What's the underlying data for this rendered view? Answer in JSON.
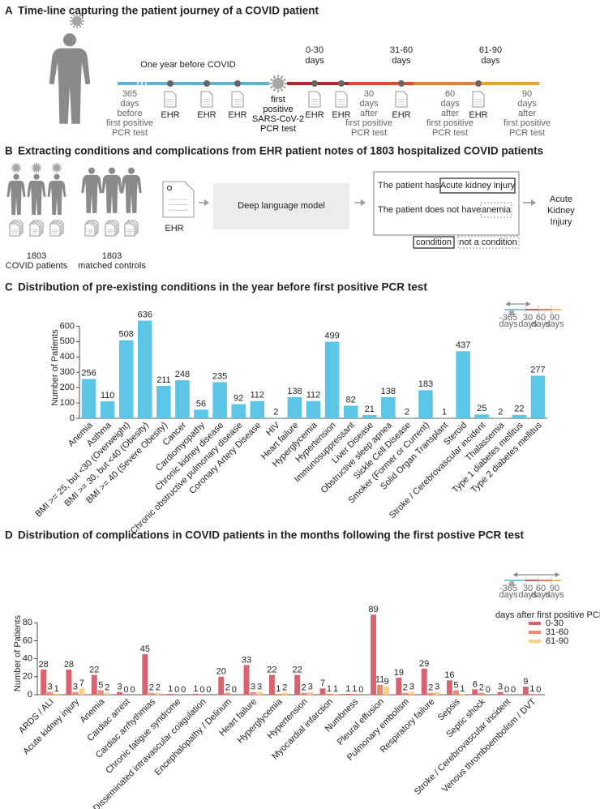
{
  "panel_a": {
    "label": "A",
    "title": "Time-line capturing the patient journey of a COVID patient",
    "period_label": "One year before COVID",
    "windows": [
      [
        "0-30",
        "days"
      ],
      [
        "31-60",
        "days"
      ],
      [
        "61-90",
        "days"
      ]
    ],
    "milestones": [
      [
        "365",
        "days",
        "before",
        "first positive",
        "PCR test"
      ],
      [
        "first",
        "positive",
        "SARS-CoV-2",
        "PCR test"
      ],
      [
        "30",
        "days",
        "after",
        "first positive",
        "PCR test"
      ],
      [
        "60",
        "days",
        "after",
        "first positive",
        "PCR test"
      ],
      [
        "90",
        "days",
        "after",
        "first positive",
        "PCR test"
      ]
    ],
    "ehr_labels": [
      "EHR",
      "EHR",
      "EHR",
      "EHR",
      "EHR",
      "EHR",
      "EHR"
    ]
  },
  "panel_b": {
    "label": "B",
    "title": "Extracting conditions and complications from EHR patient notes of 1803 hospitalized COVID patients",
    "cohorts": [
      {
        "count": 1803,
        "label": "COVID patients"
      },
      {
        "count": 1803,
        "label": "matched controls"
      }
    ],
    "ehr_label": "EHR",
    "model": "Deep language model",
    "sentence_1": "The patient has",
    "condition_example": "Acute kidney injury",
    "sentence_2": "The patient does not have",
    "non_condition_example": "anemia",
    "output": [
      "Acute",
      "Kidney",
      "Injury"
    ],
    "legend_condition": "condition",
    "legend_not_condition": "not a condition"
  },
  "chart_data": [
    {
      "type": "bar",
      "panel_label": "C",
      "title": "Distribution of pre-existing conditions in the year before first positive PCR test",
      "ylabel": "Number of Patients",
      "categories": [
        "Anemia",
        "Asthma",
        "BMI >= 25, but <30 (Overweight)",
        "BMI >= 30, but <40 (Obesity)",
        "BMI >= 40 (Severe Obesity)",
        "Cancer",
        "Cardiomyopathy",
        "Chronic kidney disease",
        "Chronic obstructive pulmonary disease",
        "Coronary Artery Disease",
        "HIV",
        "Heart failure",
        "Hyperglycemia",
        "Hypertension",
        "Immunosuppressant",
        "Liver Disease",
        "Obstructive sleep apnea",
        "Sickle Cell Disease",
        "Smoker (Former or Current)",
        "Solid Organ Transplant",
        "Steroid",
        "Stroke / Cerebrovascular incident",
        "Thalassemia",
        "Type 1 diabetes mellitus",
        "Type 2 diabetes mellitus"
      ],
      "values": [
        256,
        110,
        508,
        636,
        211,
        248,
        56,
        235,
        92,
        112,
        2,
        138,
        112,
        499,
        82,
        21,
        138,
        2,
        183,
        1,
        437,
        25,
        2,
        22,
        277
      ],
      "color": "#5bc6e6",
      "ylim": [
        0,
        660
      ],
      "yticks": [
        0,
        100,
        200,
        300,
        400,
        500,
        600
      ],
      "inset_labels": [
        [
          "-365",
          "days"
        ],
        [
          "30",
          "days"
        ],
        [
          "60",
          "days"
        ],
        [
          "90",
          "days"
        ]
      ]
    },
    {
      "type": "grouped_bar",
      "panel_label": "D",
      "title": "Distribution of complications in COVID patients in the months following the first postive PCR test",
      "ylabel": "Number of Patients",
      "categories": [
        "ARDS / ALI",
        "Acute kidney injury",
        "Anemia",
        "Cardiac arrest",
        "Cardiac arrhythmias",
        "Chronic fatigue syndrome",
        "Disseminated intravascular coagulation",
        "Encephalopathy / Delirium",
        "Heart failure",
        "Hyperglycemia",
        "Hypertension",
        "Myocardial infarction",
        "Numbness",
        "Pleural effusion",
        "Pulmonary embolism",
        "Respiratory failure",
        "Sepsis",
        "Septic shock",
        "Stroke / Cerebrovascular incident",
        "Venous thromboembolism / DVT"
      ],
      "series": [
        {
          "name": "0-30",
          "color": "#d9646f",
          "values": [
            28,
            28,
            22,
            3,
            45,
            1,
            1,
            20,
            33,
            22,
            22,
            7,
            1,
            89,
            19,
            29,
            16,
            6,
            3,
            9
          ]
        },
        {
          "name": "31-60",
          "color": "#f08a72",
          "values": [
            3,
            3,
            5,
            0,
            2,
            0,
            0,
            2,
            3,
            1,
            2,
            1,
            1,
            11,
            2,
            2,
            5,
            2,
            0,
            1
          ]
        },
        {
          "name": "61-90",
          "color": "#f9d081",
          "values": [
            1,
            7,
            2,
            0,
            2,
            0,
            0,
            0,
            3,
            2,
            3,
            1,
            0,
            9,
            3,
            3,
            1,
            0,
            0,
            0
          ]
        }
      ],
      "legend_title": "days after first positive PCR test",
      "ylim": [
        0,
        92
      ],
      "yticks": [
        0,
        20,
        40,
        60,
        80
      ],
      "inset_labels": [
        [
          "-365",
          "days"
        ],
        [
          "30",
          "days"
        ],
        [
          "60",
          "days"
        ],
        [
          "90",
          "days"
        ]
      ]
    }
  ]
}
